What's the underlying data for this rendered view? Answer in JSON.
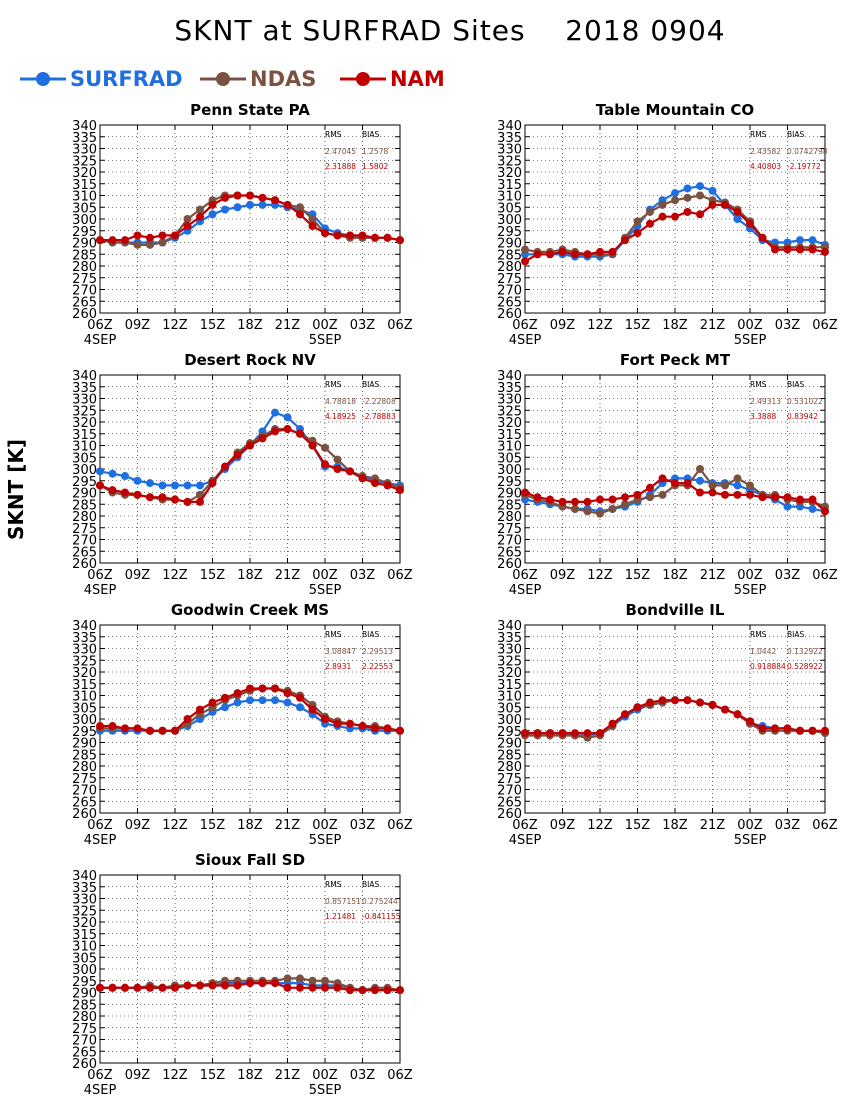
{
  "title": "SKNT at SURFRAD Sites    2018 0904",
  "ylabel": "SKNT [K]",
  "colors": {
    "SURFRAD": "#1f6fe0",
    "NDAS": "#7b5241",
    "NAM": "#c00000"
  },
  "legend": [
    {
      "name": "SURFRAD",
      "color": "#1f6fe0"
    },
    {
      "name": "NDAS",
      "color": "#7b5241"
    },
    {
      "name": "NAM",
      "color": "#c00000"
    }
  ],
  "chart_data": [
    {
      "type": "line",
      "title": "Penn State PA",
      "ylim": [
        260,
        340
      ],
      "yticks": [
        260,
        265,
        270,
        275,
        280,
        285,
        290,
        295,
        300,
        305,
        310,
        315,
        320,
        325,
        330,
        335,
        340
      ],
      "xticks": [
        "06Z",
        "09Z",
        "12Z",
        "15Z",
        "18Z",
        "21Z",
        "00Z",
        "03Z",
        "06Z"
      ],
      "xsub": [
        "4SEP",
        "",
        "",
        "",
        "",
        "",
        "5SEP",
        "",
        ""
      ],
      "stats": {
        "header": [
          "RMS",
          "BIAS"
        ],
        "rows": [
          [
            "2.47045",
            "1.2578"
          ],
          [
            "2.31888",
            "1.5802"
          ]
        ]
      },
      "x": [
        6,
        7,
        8,
        9,
        10,
        11,
        12,
        13,
        14,
        15,
        16,
        17,
        18,
        19,
        20,
        21,
        22,
        23,
        24,
        25,
        26,
        27,
        28,
        29,
        30
      ],
      "series": [
        {
          "name": "SURFRAD",
          "values": [
            291,
            290,
            290,
            290,
            290,
            290,
            292,
            295,
            299,
            302,
            304,
            305,
            306,
            306,
            306,
            305,
            304,
            302,
            296,
            294,
            293,
            292,
            292,
            292,
            291
          ]
        },
        {
          "name": "NDAS",
          "values": [
            291,
            290,
            290,
            289,
            289,
            290,
            293,
            300,
            304,
            308,
            310,
            310,
            310,
            309,
            308,
            306,
            305,
            300,
            294,
            293,
            292,
            292,
            292,
            292,
            291
          ]
        },
        {
          "name": "NAM",
          "values": [
            291,
            291,
            291,
            293,
            292,
            293,
            293,
            297,
            301,
            306,
            309,
            310,
            310,
            309,
            308,
            306,
            302,
            297,
            294,
            293,
            293,
            293,
            292,
            292,
            291
          ]
        }
      ]
    },
    {
      "type": "line",
      "title": "Table Mountain CO",
      "ylim": [
        260,
        340
      ],
      "yticks": [
        260,
        265,
        270,
        275,
        280,
        285,
        290,
        295,
        300,
        305,
        310,
        315,
        320,
        325,
        330,
        335,
        340
      ],
      "xticks": [
        "06Z",
        "09Z",
        "12Z",
        "15Z",
        "18Z",
        "21Z",
        "00Z",
        "03Z",
        "06Z"
      ],
      "xsub": [
        "4SEP",
        "",
        "",
        "",
        "",
        "",
        "5SEP",
        "",
        ""
      ],
      "stats": {
        "header": [
          "RMS",
          "BIAS"
        ],
        "rows": [
          [
            "2.43582",
            "0.0742798"
          ],
          [
            "4.40803",
            "-2.19772"
          ]
        ]
      },
      "x": [
        6,
        7,
        8,
        9,
        10,
        11,
        12,
        13,
        14,
        15,
        16,
        17,
        18,
        19,
        20,
        21,
        22,
        23,
        24,
        25,
        26,
        27,
        28,
        29,
        30
      ],
      "series": [
        {
          "name": "SURFRAD",
          "values": [
            285,
            285,
            285,
            285,
            284,
            284,
            284,
            285,
            291,
            297,
            304,
            308,
            311,
            313,
            314,
            312,
            306,
            300,
            296,
            291,
            290,
            290,
            291,
            291,
            289
          ]
        },
        {
          "name": "NDAS",
          "values": [
            287,
            286,
            286,
            287,
            286,
            285,
            285,
            285,
            292,
            299,
            303,
            306,
            308,
            309,
            310,
            308,
            307,
            304,
            299,
            292,
            288,
            288,
            288,
            288,
            288
          ]
        },
        {
          "name": "NAM",
          "values": [
            282,
            285,
            285,
            286,
            285,
            285,
            286,
            286,
            291,
            294,
            298,
            301,
            301,
            303,
            302,
            306,
            306,
            303,
            298,
            292,
            287,
            287,
            287,
            287,
            286
          ]
        }
      ]
    },
    {
      "type": "line",
      "title": "Desert Rock NV",
      "ylim": [
        260,
        340
      ],
      "yticks": [
        260,
        265,
        270,
        275,
        280,
        285,
        290,
        295,
        300,
        305,
        310,
        315,
        320,
        325,
        330,
        335,
        340
      ],
      "xticks": [
        "06Z",
        "09Z",
        "12Z",
        "15Z",
        "18Z",
        "21Z",
        "00Z",
        "03Z",
        "06Z"
      ],
      "xsub": [
        "4SEP",
        "",
        "",
        "",
        "",
        "",
        "5SEP",
        "",
        ""
      ],
      "stats": {
        "header": [
          "RMS",
          "BIAS"
        ],
        "rows": [
          [
            "4.78818",
            "-2.22808"
          ],
          [
            "4.18925",
            "-2.78883"
          ]
        ]
      },
      "x": [
        6,
        7,
        8,
        9,
        10,
        11,
        12,
        13,
        14,
        15,
        16,
        17,
        18,
        19,
        20,
        21,
        22,
        23,
        24,
        25,
        26,
        27,
        28,
        29,
        30
      ],
      "series": [
        {
          "name": "SURFRAD",
          "values": [
            299,
            298,
            297,
            295,
            294,
            293,
            293,
            293,
            293,
            295,
            300,
            305,
            310,
            316,
            324,
            322,
            317,
            310,
            301,
            301,
            299,
            297,
            295,
            294,
            293
          ]
        },
        {
          "name": "NDAS",
          "values": [
            293,
            290,
            289,
            289,
            288,
            287,
            287,
            286,
            289,
            295,
            301,
            307,
            311,
            314,
            317,
            317,
            315,
            312,
            309,
            304,
            299,
            297,
            296,
            294,
            292
          ]
        },
        {
          "name": "NAM",
          "values": [
            293,
            291,
            290,
            289,
            288,
            288,
            287,
            286,
            286,
            294,
            301,
            306,
            310,
            313,
            316,
            317,
            315,
            310,
            302,
            300,
            299,
            296,
            294,
            293,
            291
          ]
        }
      ]
    },
    {
      "type": "line",
      "title": "Fort Peck MT",
      "ylim": [
        260,
        340
      ],
      "yticks": [
        260,
        265,
        270,
        275,
        280,
        285,
        290,
        295,
        300,
        305,
        310,
        315,
        320,
        325,
        330,
        335,
        340
      ],
      "xticks": [
        "06Z",
        "09Z",
        "12Z",
        "15Z",
        "18Z",
        "21Z",
        "00Z",
        "03Z",
        "06Z"
      ],
      "xsub": [
        "4SEP",
        "",
        "",
        "",
        "",
        "",
        "5SEP",
        "",
        ""
      ],
      "stats": {
        "header": [
          "RMS",
          "BIAS"
        ],
        "rows": [
          [
            "2.49313",
            "0.531022"
          ],
          [
            "3.3888",
            "0.83942"
          ]
        ]
      },
      "x": [
        6,
        7,
        8,
        9,
        10,
        11,
        12,
        13,
        14,
        15,
        16,
        17,
        18,
        19,
        20,
        21,
        22,
        23,
        24,
        25,
        26,
        27,
        28,
        29,
        30
      ],
      "series": [
        {
          "name": "SURFRAD",
          "values": [
            287,
            286,
            285,
            284,
            283,
            283,
            282,
            283,
            284,
            286,
            289,
            294,
            296,
            296,
            295,
            294,
            294,
            293,
            291,
            289,
            287,
            284,
            284,
            283,
            282
          ]
        },
        {
          "name": "NDAS",
          "values": [
            289,
            287,
            286,
            284,
            283,
            282,
            281,
            283,
            285,
            287,
            288,
            289,
            293,
            293,
            300,
            293,
            293,
            296,
            293,
            289,
            289,
            287,
            286,
            286,
            284
          ]
        },
        {
          "name": "NAM",
          "values": [
            290,
            288,
            287,
            286,
            286,
            286,
            287,
            287,
            288,
            289,
            292,
            296,
            294,
            294,
            290,
            290,
            289,
            289,
            289,
            288,
            288,
            288,
            287,
            287,
            282
          ]
        }
      ]
    },
    {
      "type": "line",
      "title": "Goodwin Creek MS",
      "ylim": [
        260,
        340
      ],
      "yticks": [
        260,
        265,
        270,
        275,
        280,
        285,
        290,
        295,
        300,
        305,
        310,
        315,
        320,
        325,
        330,
        335,
        340
      ],
      "xticks": [
        "06Z",
        "09Z",
        "12Z",
        "15Z",
        "18Z",
        "21Z",
        "00Z",
        "03Z",
        "06Z"
      ],
      "xsub": [
        "4SEP",
        "",
        "",
        "",
        "",
        "",
        "5SEP",
        "",
        ""
      ],
      "stats": {
        "header": [
          "RMS",
          "BIAS"
        ],
        "rows": [
          [
            "3.08847",
            "2.29513"
          ],
          [
            "2.8931",
            "2.22553"
          ]
        ]
      },
      "x": [
        6,
        7,
        8,
        9,
        10,
        11,
        12,
        13,
        14,
        15,
        16,
        17,
        18,
        19,
        20,
        21,
        22,
        23,
        24,
        25,
        26,
        27,
        28,
        29,
        30
      ],
      "series": [
        {
          "name": "SURFRAD",
          "values": [
            295,
            295,
            295,
            295,
            295,
            295,
            295,
            297,
            300,
            303,
            305,
            307,
            308,
            308,
            308,
            307,
            305,
            302,
            298,
            297,
            296,
            296,
            295,
            295,
            295
          ]
        },
        {
          "name": "NDAS",
          "values": [
            296,
            296,
            296,
            296,
            295,
            295,
            295,
            298,
            302,
            305,
            308,
            310,
            312,
            313,
            313,
            312,
            310,
            306,
            301,
            299,
            298,
            297,
            297,
            296,
            295
          ]
        },
        {
          "name": "NAM",
          "values": [
            297,
            297,
            296,
            296,
            295,
            295,
            295,
            300,
            304,
            307,
            309,
            311,
            313,
            313,
            313,
            311,
            309,
            304,
            300,
            298,
            298,
            297,
            296,
            296,
            295
          ]
        }
      ]
    },
    {
      "type": "line",
      "title": "Bondville IL",
      "ylim": [
        260,
        340
      ],
      "yticks": [
        260,
        265,
        270,
        275,
        280,
        285,
        290,
        295,
        300,
        305,
        310,
        315,
        320,
        325,
        330,
        335,
        340
      ],
      "xticks": [
        "06Z",
        "09Z",
        "12Z",
        "15Z",
        "18Z",
        "21Z",
        "00Z",
        "03Z",
        "06Z"
      ],
      "xsub": [
        "4SEP",
        "",
        "",
        "",
        "",
        "",
        "5SEP",
        "",
        ""
      ],
      "stats": {
        "header": [
          "RMS",
          "BIAS"
        ],
        "rows": [
          [
            "1.0442",
            "0.132922"
          ],
          [
            "0.918884",
            "0.528922"
          ]
        ]
      },
      "x": [
        6,
        7,
        8,
        9,
        10,
        11,
        12,
        13,
        14,
        15,
        16,
        17,
        18,
        19,
        20,
        21,
        22,
        23,
        24,
        25,
        26,
        27,
        28,
        29,
        30
      ],
      "series": [
        {
          "name": "SURFRAD",
          "values": [
            294,
            294,
            294,
            294,
            293,
            293,
            294,
            297,
            301,
            304,
            306,
            307,
            308,
            308,
            307,
            306,
            304,
            302,
            298,
            297,
            296,
            296,
            295,
            295,
            294
          ]
        },
        {
          "name": "NDAS",
          "values": [
            293,
            293,
            293,
            293,
            293,
            292,
            293,
            297,
            302,
            305,
            306,
            307,
            308,
            308,
            307,
            306,
            304,
            302,
            298,
            295,
            295,
            295,
            295,
            295,
            294
          ]
        },
        {
          "name": "NAM",
          "values": [
            294,
            294,
            294,
            294,
            294,
            294,
            294,
            298,
            302,
            305,
            307,
            308,
            308,
            308,
            307,
            306,
            304,
            302,
            299,
            296,
            296,
            296,
            295,
            295,
            295
          ]
        }
      ]
    },
    {
      "type": "line",
      "title": "Sioux Fall SD",
      "ylim": [
        260,
        340
      ],
      "yticks": [
        260,
        265,
        270,
        275,
        280,
        285,
        290,
        295,
        300,
        305,
        310,
        315,
        320,
        325,
        330,
        335,
        340
      ],
      "xticks": [
        "06Z",
        "09Z",
        "12Z",
        "15Z",
        "18Z",
        "21Z",
        "00Z",
        "03Z",
        "06Z"
      ],
      "xsub": [
        "4SEP",
        "",
        "",
        "",
        "",
        "",
        "5SEP",
        "",
        ""
      ],
      "stats": {
        "header": [
          "RMS",
          "BIAS"
        ],
        "rows": [
          [
            "0.857151",
            "0.275244"
          ],
          [
            "1.21481",
            "-0.841155"
          ]
        ]
      },
      "x": [
        6,
        7,
        8,
        9,
        10,
        11,
        12,
        13,
        14,
        15,
        16,
        17,
        18,
        19,
        20,
        21,
        22,
        23,
        24,
        25,
        26,
        27,
        28,
        29,
        30
      ],
      "series": [
        {
          "name": "SURFRAD",
          "values": [
            292,
            292,
            292,
            292,
            292,
            292,
            293,
            293,
            293,
            293,
            294,
            294,
            294,
            294,
            294,
            294,
            294,
            293,
            293,
            293,
            292,
            291,
            291,
            291,
            291
          ]
        },
        {
          "name": "NDAS",
          "values": [
            292,
            292,
            292,
            292,
            293,
            292,
            293,
            293,
            293,
            294,
            295,
            295,
            295,
            295,
            295,
            296,
            296,
            295,
            295,
            294,
            292,
            291,
            292,
            292,
            291
          ]
        },
        {
          "name": "NAM",
          "values": [
            292,
            292,
            292,
            292,
            292,
            292,
            292,
            293,
            293,
            293,
            293,
            293,
            294,
            294,
            294,
            292,
            292,
            292,
            292,
            292,
            291,
            291,
            291,
            291,
            291
          ]
        }
      ]
    }
  ]
}
